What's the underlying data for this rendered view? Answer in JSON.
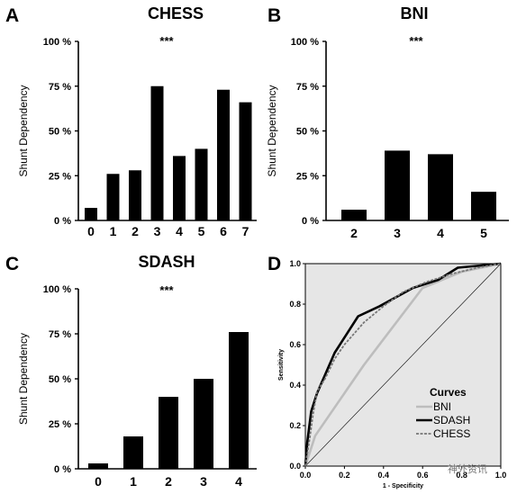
{
  "chart_data": [
    {
      "panel_letter": "A",
      "type": "bar",
      "title": "CHESS",
      "annotation": "***",
      "ylabel": "Shunt Dependency",
      "ylim": [
        0,
        100
      ],
      "yticks": [
        "0 %",
        "25 %",
        "50 %",
        "75 %",
        "100 %"
      ],
      "categories": [
        "0",
        "1",
        "2",
        "3",
        "4",
        "5",
        "6",
        "7"
      ],
      "values": [
        7,
        26,
        28,
        75,
        36,
        40,
        73,
        66
      ]
    },
    {
      "panel_letter": "B",
      "type": "bar",
      "title": "BNI",
      "annotation": "***",
      "ylabel": "Shunt Dependency",
      "ylim": [
        0,
        100
      ],
      "yticks": [
        "0 %",
        "25 %",
        "50 %",
        "75 %",
        "100 %"
      ],
      "categories": [
        "2",
        "3",
        "4",
        "5"
      ],
      "values": [
        6,
        39,
        37,
        16
      ]
    },
    {
      "panel_letter": "C",
      "type": "bar",
      "title": "SDASH",
      "annotation": "***",
      "ylabel": "Shunt Dependency",
      "ylim": [
        0,
        100
      ],
      "yticks": [
        "0 %",
        "25 %",
        "50 %",
        "75 %",
        "100 %"
      ],
      "categories": [
        "0",
        "1",
        "2",
        "3",
        "4"
      ],
      "values": [
        3,
        18,
        40,
        50,
        76
      ]
    },
    {
      "panel_letter": "D",
      "type": "line",
      "xlabel": "1 - Specificity",
      "ylabel": "Sensitivity",
      "xlim": [
        0,
        1
      ],
      "ylim": [
        0,
        1
      ],
      "xticks": [
        "0.0",
        "0.2",
        "0.4",
        "0.6",
        "0.8",
        "1.0"
      ],
      "yticks": [
        "0.0",
        "0.2",
        "0.4",
        "0.6",
        "0.8",
        "1.0"
      ],
      "legend_title": "Curves",
      "legend_position": "bottom-right",
      "reference_line": true,
      "series": [
        {
          "name": "BNI",
          "color": "#bdbdbd",
          "style": "solid",
          "points": [
            [
              0,
              0
            ],
            [
              0.05,
              0.15
            ],
            [
              0.3,
              0.5
            ],
            [
              0.6,
              0.88
            ],
            [
              0.8,
              0.96
            ],
            [
              1,
              1
            ]
          ]
        },
        {
          "name": "SDASH",
          "color": "#000000",
          "style": "solid",
          "points": [
            [
              0,
              0
            ],
            [
              0.01,
              0.12
            ],
            [
              0.03,
              0.27
            ],
            [
              0.06,
              0.36
            ],
            [
              0.15,
              0.56
            ],
            [
              0.27,
              0.74
            ],
            [
              0.38,
              0.79
            ],
            [
              0.55,
              0.88
            ],
            [
              0.68,
              0.92
            ],
            [
              0.78,
              0.98
            ],
            [
              1,
              1
            ]
          ]
        },
        {
          "name": "CHESS",
          "color": "#777777",
          "style": "dashed",
          "points": [
            [
              0,
              0
            ],
            [
              0.02,
              0.12
            ],
            [
              0.04,
              0.26
            ],
            [
              0.06,
              0.37
            ],
            [
              0.1,
              0.43
            ],
            [
              0.15,
              0.53
            ],
            [
              0.2,
              0.6
            ],
            [
              0.3,
              0.71
            ],
            [
              0.4,
              0.79
            ],
            [
              0.5,
              0.86
            ],
            [
              0.62,
              0.91
            ],
            [
              0.75,
              0.95
            ],
            [
              0.88,
              0.98
            ],
            [
              1,
              1
            ]
          ]
        }
      ]
    }
  ],
  "watermark": "神外资讯"
}
